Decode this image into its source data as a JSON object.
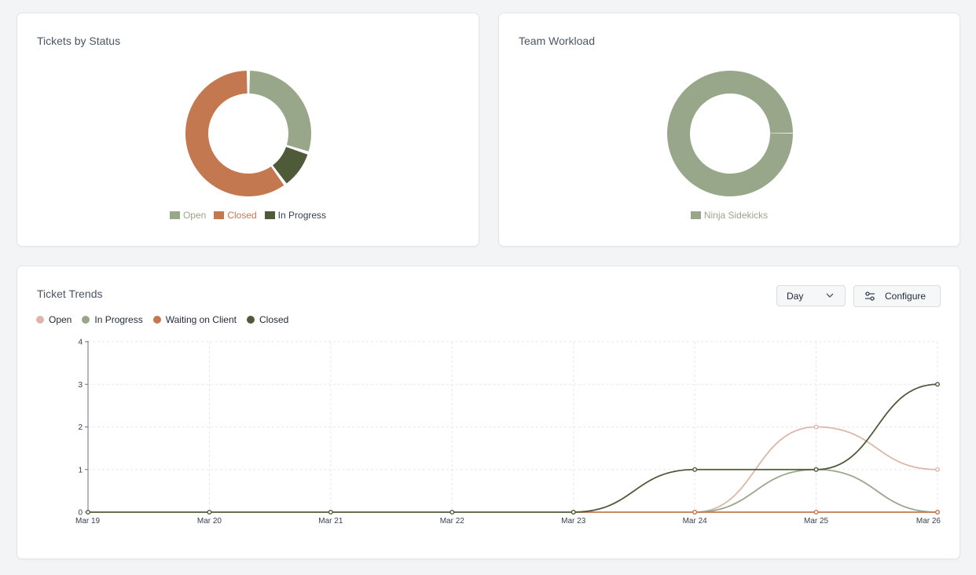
{
  "status_card": {
    "title": "Tickets by Status"
  },
  "team_card": {
    "title": "Team Workload"
  },
  "trends_card": {
    "title": "Ticket Trends",
    "interval": "Day",
    "configure_label": "Configure"
  },
  "chart_data": [
    {
      "type": "pie",
      "title": "Tickets by Status",
      "donut": true,
      "legend": "bottom",
      "slices": [
        {
          "label": "Open",
          "value": 3,
          "color": "#98a68a"
        },
        {
          "label": "In Progress",
          "value": 1,
          "color": "#4f5a38"
        },
        {
          "label": "Closed",
          "value": 6,
          "color": "#c4784f"
        }
      ]
    },
    {
      "type": "pie",
      "title": "Team Workload",
      "donut": true,
      "legend": "bottom",
      "slices": [
        {
          "label": "Ninja Sidekicks",
          "value": 1,
          "color": "#98a68a"
        }
      ]
    },
    {
      "type": "line",
      "title": "Ticket Trends",
      "legend": "top-left",
      "grid": true,
      "ylim": [
        0,
        4
      ],
      "yticks": [
        "0",
        "1",
        "2",
        "3",
        "4"
      ],
      "categories": [
        "Mar 19",
        "Mar 20",
        "Mar 21",
        "Mar 22",
        "Mar 23",
        "Mar 24",
        "Mar 25",
        "Mar 26"
      ],
      "series": [
        {
          "name": "Open",
          "color": "#dcb6a9",
          "values": [
            null,
            null,
            null,
            null,
            null,
            0,
            2,
            1
          ]
        },
        {
          "name": "In Progress",
          "color": "#98a68a",
          "values": [
            null,
            null,
            null,
            null,
            null,
            0,
            1,
            0
          ]
        },
        {
          "name": "Waiting on Client",
          "color": "#c4784f",
          "values": [
            null,
            null,
            null,
            null,
            0,
            0,
            0,
            0
          ]
        },
        {
          "name": "Closed",
          "color": "#4f5a38",
          "values": [
            0,
            0,
            0,
            0,
            0,
            1,
            1,
            3
          ]
        }
      ]
    }
  ]
}
